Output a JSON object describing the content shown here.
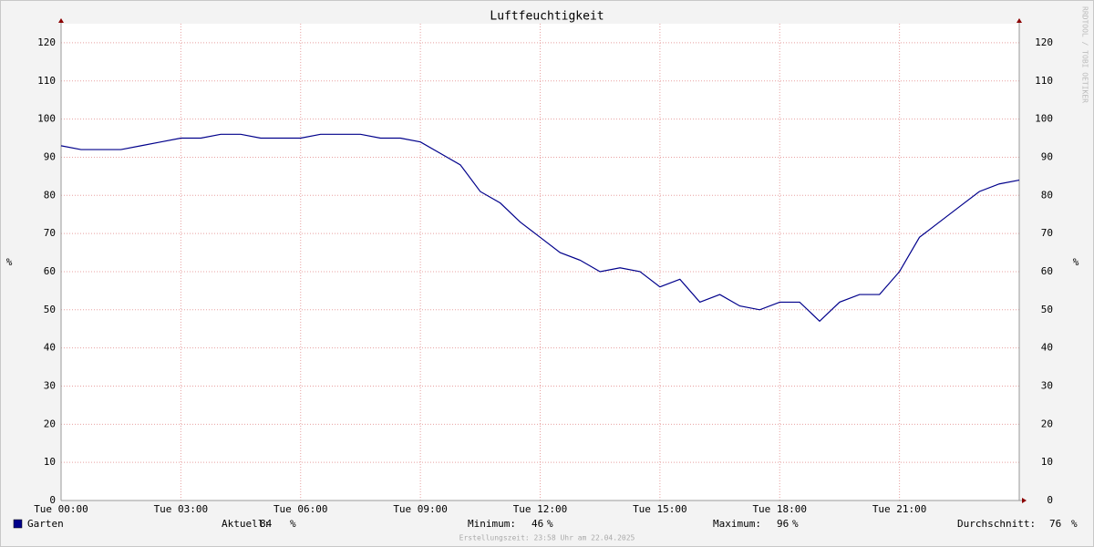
{
  "chart_data": {
    "type": "line",
    "title": "Luftfeuchtigkeit",
    "y_label": "%",
    "x": [
      0,
      0.5,
      1,
      1.5,
      2,
      2.5,
      3,
      3.5,
      4,
      4.5,
      5,
      5.5,
      6,
      6.5,
      7,
      7.5,
      8,
      8.5,
      9,
      9.5,
      10,
      10.5,
      11,
      11.5,
      12,
      12.5,
      13,
      13.5,
      14,
      14.5,
      15,
      15.5,
      16,
      16.5,
      17,
      17.5,
      18,
      18.5,
      19,
      19.5,
      20,
      20.5,
      21,
      21.5,
      22,
      22.5,
      23,
      23.5,
      24
    ],
    "series": [
      {
        "name": "Garten",
        "color": "#00008b",
        "values": [
          93,
          92,
          92,
          92,
          93,
          94,
          95,
          95,
          96,
          96,
          95,
          95,
          95,
          96,
          96,
          96,
          95,
          95,
          94,
          91,
          88,
          81,
          78,
          73,
          69,
          65,
          63,
          60,
          61,
          60,
          56,
          58,
          52,
          54,
          51,
          50,
          52,
          52,
          47,
          52,
          54,
          54,
          60,
          69,
          73,
          77,
          81,
          83,
          84
        ]
      }
    ],
    "xlim": [
      0,
      24
    ],
    "xticks": [
      {
        "value": 0,
        "label": "Tue 00:00"
      },
      {
        "value": 3,
        "label": "Tue 03:00"
      },
      {
        "value": 6,
        "label": "Tue 06:00"
      },
      {
        "value": 9,
        "label": "Tue 09:00"
      },
      {
        "value": 12,
        "label": "Tue 12:00"
      },
      {
        "value": 15,
        "label": "Tue 15:00"
      },
      {
        "value": 18,
        "label": "Tue 18:00"
      },
      {
        "value": 21,
        "label": "Tue 21:00"
      }
    ],
    "ylim": [
      0,
      125
    ],
    "yticks": [
      0,
      10,
      20,
      30,
      40,
      50,
      60,
      70,
      80,
      90,
      100,
      110,
      120
    ],
    "grid": true,
    "stats": [
      {
        "label": "Aktuell:",
        "value": 84
      },
      {
        "label": "Minimum:",
        "value": 46
      },
      {
        "label": "Maximum:",
        "value": 96
      },
      {
        "label": "Durchschnitt:",
        "value": 76
      }
    ],
    "unit": "%",
    "watermark": "RRDTOOL / TOBI OETIKER",
    "footer": "Erstellungszeit: 23:58 Uhr am 22.04.2025"
  }
}
